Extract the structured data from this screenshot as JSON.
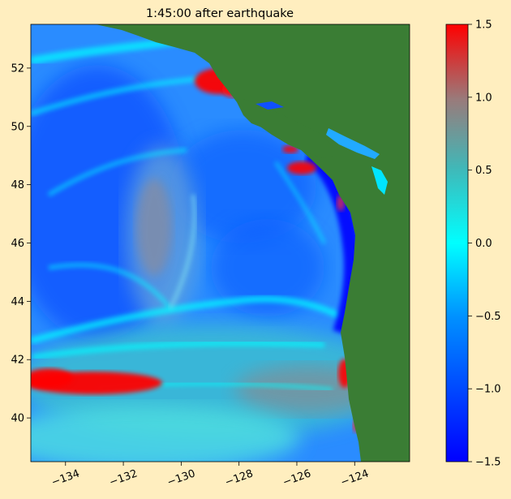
{
  "title": "1:45:00 after earthquake",
  "map": {
    "lon_range": [
      -135.2,
      -122.1
    ],
    "lat_range": [
      38.5,
      53.5
    ],
    "x_ticks": [
      -134,
      -132,
      -130,
      -128,
      -126,
      -124
    ],
    "x_tick_labels": [
      "−134",
      "−132",
      "−130",
      "−128",
      "−126",
      "−124"
    ],
    "y_ticks": [
      40,
      42,
      44,
      46,
      48,
      50,
      52
    ],
    "y_tick_labels": [
      "40",
      "42",
      "44",
      "46",
      "48",
      "50",
      "52"
    ],
    "land_color": "#3a7d34",
    "ocean_base_color": "#2a8cff"
  },
  "colorbar": {
    "range": [
      -1.5,
      1.5
    ],
    "ticks": [
      1.5,
      1.0,
      0.5,
      0.0,
      -0.5,
      -1.0,
      -1.5
    ],
    "tick_labels": [
      "1.5",
      "1.0",
      "0.5",
      "0.0",
      "−0.5",
      "−1.0",
      "−1.5"
    ],
    "stops": [
      {
        "value": -1.5,
        "color": "#0000ff"
      },
      {
        "value": -0.5,
        "color": "#0090ff"
      },
      {
        "value": 0.0,
        "color": "#00ffff"
      },
      {
        "value": 0.5,
        "color": "#40b8b8"
      },
      {
        "value": 1.0,
        "color": "#9a7a7a"
      },
      {
        "value": 1.5,
        "color": "#ff0000"
      }
    ]
  }
}
